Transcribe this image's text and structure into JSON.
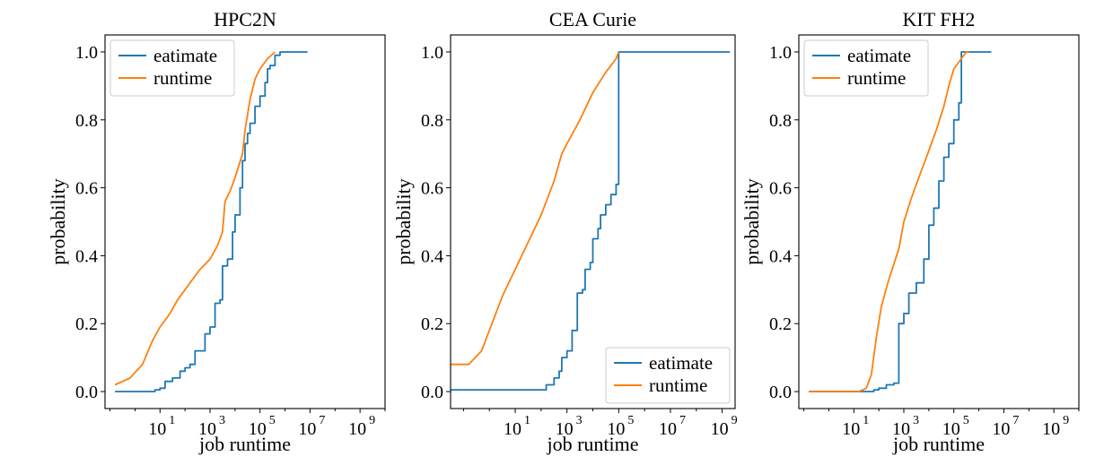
{
  "colors": {
    "estimate": "#1f77b4",
    "runtime": "#ff7f0e"
  },
  "chart_data": [
    {
      "type": "line",
      "title": "HPC2N",
      "xlabel": "job runtime",
      "ylabel": "probability",
      "xscale": "log",
      "xlim_log10": [
        -1.2,
        10.0
      ],
      "ylim": [
        -0.05,
        1.05
      ],
      "xticks_exp": [
        "1",
        "3",
        "5",
        "7",
        "9"
      ],
      "yticks": [
        "0.0",
        "0.2",
        "0.4",
        "0.6",
        "0.8",
        "1.0"
      ],
      "legend_loc": "upper-left",
      "series": [
        {
          "name": "eatimate",
          "color_key": "estimate",
          "step": true,
          "points": [
            [
              -0.8,
              0.0
            ],
            [
              0.3,
              0.0
            ],
            [
              0.8,
              0.005
            ],
            [
              1.0,
              0.01
            ],
            [
              1.2,
              0.03
            ],
            [
              1.5,
              0.04
            ],
            [
              1.8,
              0.06
            ],
            [
              2.0,
              0.07
            ],
            [
              2.2,
              0.08
            ],
            [
              2.4,
              0.12
            ],
            [
              2.6,
              0.12
            ],
            [
              2.8,
              0.17
            ],
            [
              3.0,
              0.19
            ],
            [
              3.2,
              0.26
            ],
            [
              3.4,
              0.27
            ],
            [
              3.5,
              0.37
            ],
            [
              3.7,
              0.39
            ],
            [
              3.9,
              0.47
            ],
            [
              4.0,
              0.52
            ],
            [
              4.2,
              0.6
            ],
            [
              4.3,
              0.68
            ],
            [
              4.4,
              0.73
            ],
            [
              4.5,
              0.76
            ],
            [
              4.6,
              0.79
            ],
            [
              4.8,
              0.84
            ],
            [
              5.0,
              0.87
            ],
            [
              5.2,
              0.91
            ],
            [
              5.3,
              0.95
            ],
            [
              5.4,
              0.96
            ],
            [
              5.6,
              0.99
            ],
            [
              5.8,
              1.0
            ],
            [
              6.9,
              1.0
            ]
          ]
        },
        {
          "name": "runtime",
          "color_key": "runtime",
          "step": false,
          "points": [
            [
              -0.8,
              0.02
            ],
            [
              -0.2,
              0.04
            ],
            [
              0.3,
              0.08
            ],
            [
              0.7,
              0.15
            ],
            [
              1.0,
              0.19
            ],
            [
              1.4,
              0.23
            ],
            [
              1.7,
              0.27
            ],
            [
              1.9,
              0.29
            ],
            [
              2.2,
              0.32
            ],
            [
              2.6,
              0.36
            ],
            [
              3.0,
              0.39
            ],
            [
              3.3,
              0.43
            ],
            [
              3.5,
              0.47
            ],
            [
              3.6,
              0.56
            ],
            [
              3.8,
              0.59
            ],
            [
              4.0,
              0.63
            ],
            [
              4.3,
              0.7
            ],
            [
              4.4,
              0.77
            ],
            [
              4.6,
              0.86
            ],
            [
              4.8,
              0.92
            ],
            [
              5.0,
              0.95
            ],
            [
              5.3,
              0.98
            ],
            [
              5.6,
              1.0
            ]
          ]
        }
      ]
    },
    {
      "type": "line",
      "title": "CEA Curie",
      "xlabel": "job runtime",
      "ylabel": "probability",
      "xscale": "log",
      "xlim_log10": [
        -1.5,
        9.5
      ],
      "ylim": [
        -0.05,
        1.05
      ],
      "xticks_exp": [
        "1",
        "3",
        "5",
        "7",
        "9"
      ],
      "yticks": [
        "0.0",
        "0.2",
        "0.4",
        "0.6",
        "0.8",
        "1.0"
      ],
      "legend_loc": "lower-right",
      "series": [
        {
          "name": "eatimate",
          "color_key": "estimate",
          "step": true,
          "points": [
            [
              -1.5,
              0.005
            ],
            [
              1.8,
              0.005
            ],
            [
              2.2,
              0.02
            ],
            [
              2.5,
              0.04
            ],
            [
              2.7,
              0.06
            ],
            [
              2.8,
              0.1
            ],
            [
              3.0,
              0.12
            ],
            [
              3.2,
              0.18
            ],
            [
              3.4,
              0.29
            ],
            [
              3.6,
              0.3
            ],
            [
              3.7,
              0.36
            ],
            [
              3.9,
              0.38
            ],
            [
              4.0,
              0.45
            ],
            [
              4.2,
              0.48
            ],
            [
              4.3,
              0.52
            ],
            [
              4.5,
              0.55
            ],
            [
              4.7,
              0.58
            ],
            [
              4.9,
              0.61
            ],
            [
              5.0,
              1.0
            ],
            [
              9.3,
              1.0
            ]
          ]
        },
        {
          "name": "runtime",
          "color_key": "runtime",
          "step": false,
          "points": [
            [
              -1.5,
              0.08
            ],
            [
              -0.8,
              0.08
            ],
            [
              -0.3,
              0.12
            ],
            [
              0.0,
              0.18
            ],
            [
              0.5,
              0.28
            ],
            [
              1.0,
              0.36
            ],
            [
              1.5,
              0.44
            ],
            [
              2.0,
              0.52
            ],
            [
              2.5,
              0.62
            ],
            [
              2.8,
              0.7
            ],
            [
              3.0,
              0.73
            ],
            [
              3.5,
              0.8
            ],
            [
              4.0,
              0.88
            ],
            [
              4.5,
              0.94
            ],
            [
              4.9,
              0.98
            ],
            [
              5.0,
              1.0
            ]
          ]
        }
      ]
    },
    {
      "type": "line",
      "title": "KIT FH2",
      "xlabel": "job runtime",
      "ylabel": "probability",
      "xscale": "log",
      "xlim_log10": [
        -1.2,
        10.0
      ],
      "ylim": [
        -0.05,
        1.05
      ],
      "xticks_exp": [
        "1",
        "3",
        "5",
        "7",
        "9"
      ],
      "yticks": [
        "0.0",
        "0.2",
        "0.4",
        "0.6",
        "0.8",
        "1.0"
      ],
      "legend_loc": "upper-left",
      "series": [
        {
          "name": "eatimate",
          "color_key": "estimate",
          "step": true,
          "points": [
            [
              -0.8,
              0.0
            ],
            [
              1.5,
              0.0
            ],
            [
              1.8,
              0.005
            ],
            [
              2.0,
              0.01
            ],
            [
              2.3,
              0.02
            ],
            [
              2.6,
              0.025
            ],
            [
              2.8,
              0.2
            ],
            [
              3.0,
              0.23
            ],
            [
              3.2,
              0.29
            ],
            [
              3.5,
              0.32
            ],
            [
              3.8,
              0.39
            ],
            [
              4.0,
              0.49
            ],
            [
              4.2,
              0.54
            ],
            [
              4.4,
              0.62
            ],
            [
              4.6,
              0.69
            ],
            [
              4.8,
              0.73
            ],
            [
              5.0,
              0.8
            ],
            [
              5.2,
              0.85
            ],
            [
              5.3,
              1.0
            ],
            [
              6.5,
              1.0
            ]
          ]
        },
        {
          "name": "runtime",
          "color_key": "runtime",
          "step": false,
          "points": [
            [
              -0.8,
              0.0
            ],
            [
              1.2,
              0.0
            ],
            [
              1.5,
              0.01
            ],
            [
              1.7,
              0.05
            ],
            [
              1.9,
              0.16
            ],
            [
              2.1,
              0.25
            ],
            [
              2.4,
              0.33
            ],
            [
              2.8,
              0.42
            ],
            [
              3.0,
              0.5
            ],
            [
              3.3,
              0.57
            ],
            [
              3.7,
              0.65
            ],
            [
              4.0,
              0.71
            ],
            [
              4.3,
              0.77
            ],
            [
              4.6,
              0.84
            ],
            [
              4.8,
              0.9
            ],
            [
              5.0,
              0.95
            ],
            [
              5.3,
              0.98
            ],
            [
              5.5,
              1.0
            ],
            [
              5.6,
              1.0
            ]
          ]
        }
      ]
    }
  ]
}
